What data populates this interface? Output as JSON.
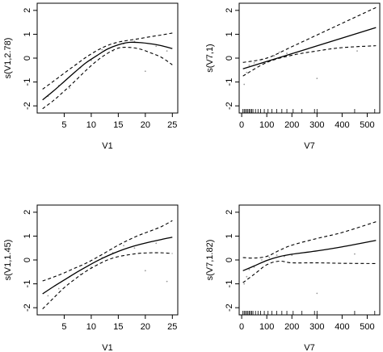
{
  "chart_data": [
    {
      "type": "line",
      "xlabel": "V1",
      "ylabel": "s(V1,2.78)",
      "xlim": [
        0,
        26
      ],
      "ylim": [
        -2.3,
        2.3
      ],
      "xticks": [
        5,
        10,
        15,
        20,
        25
      ],
      "yticks": [
        -2,
        -1,
        0,
        1,
        2
      ],
      "rug": false,
      "fit": {
        "x": [
          1,
          3,
          5,
          7,
          9,
          11,
          13,
          15,
          17,
          19,
          21,
          23,
          25
        ],
        "y": [
          -1.75,
          -1.38,
          -0.98,
          -0.58,
          -0.2,
          0.1,
          0.38,
          0.56,
          0.66,
          0.65,
          0.6,
          0.52,
          0.4
        ]
      },
      "upper": {
        "x": [
          1,
          3,
          5,
          7,
          9,
          11,
          13,
          15,
          17,
          19,
          21,
          23,
          25
        ],
        "y": [
          -1.3,
          -0.97,
          -0.63,
          -0.3,
          0.03,
          0.31,
          0.53,
          0.67,
          0.75,
          0.82,
          0.9,
          0.97,
          1.05
        ]
      },
      "lower": {
        "x": [
          1,
          3,
          5,
          7,
          9,
          11,
          13,
          15,
          17,
          19,
          21,
          23,
          25
        ],
        "y": [
          -2.12,
          -1.78,
          -1.38,
          -0.96,
          -0.52,
          -0.12,
          0.2,
          0.42,
          0.45,
          0.38,
          0.22,
          0.03,
          -0.28
        ]
      },
      "points": {
        "x": [
          2,
          4,
          6,
          8,
          10,
          12,
          14,
          16,
          18,
          20,
          22,
          24
        ],
        "y": [
          -1.6,
          -1.15,
          -1.25,
          -0.4,
          -0.1,
          0.35,
          0.3,
          0.6,
          0.7,
          -0.55,
          0.5,
          0.3
        ]
      }
    },
    {
      "type": "line",
      "xlabel": "V7",
      "ylabel": "s(V7,1)",
      "xlim": [
        -10,
        550
      ],
      "ylim": [
        -2.3,
        2.3
      ],
      "xticks": [
        0,
        100,
        200,
        300,
        400,
        500
      ],
      "yticks": [
        -2,
        -1,
        0,
        1,
        2
      ],
      "rug": true,
      "fit": {
        "x": [
          5,
          535
        ],
        "y": [
          -0.45,
          1.28
        ]
      },
      "upper": {
        "x": [
          5,
          100,
          200,
          300,
          400,
          535
        ],
        "y": [
          -0.18,
          0.0,
          0.48,
          0.97,
          1.46,
          2.12
        ]
      },
      "lower": {
        "x": [
          5,
          100,
          200,
          300,
          400,
          535
        ],
        "y": [
          -0.75,
          -0.18,
          0.12,
          0.3,
          0.44,
          0.52
        ]
      },
      "points": {
        "x": [
          10,
          20,
          30,
          50,
          80,
          100,
          130,
          150,
          180,
          300,
          460
        ],
        "y": [
          -1.1,
          -0.6,
          -0.3,
          -0.2,
          -0.05,
          0.0,
          0.1,
          0.25,
          0.2,
          -0.85,
          0.3
        ]
      },
      "rug_x": [
        5,
        10,
        15,
        20,
        25,
        30,
        35,
        40,
        45,
        55,
        65,
        75,
        90,
        105,
        120,
        140,
        160,
        180,
        205,
        240,
        290,
        300,
        450,
        530
      ]
    },
    {
      "type": "line",
      "xlabel": "V1",
      "ylabel": "s(V1,1.45)",
      "xlim": [
        0,
        26
      ],
      "ylim": [
        -2.3,
        2.3
      ],
      "xticks": [
        5,
        10,
        15,
        20,
        25
      ],
      "yticks": [
        -2,
        -1,
        0,
        1,
        2
      ],
      "rug": false,
      "fit": {
        "x": [
          1,
          3,
          5,
          7,
          9,
          11,
          13,
          15,
          17,
          19,
          21,
          23,
          25
        ],
        "y": [
          -1.42,
          -1.12,
          -0.84,
          -0.56,
          -0.3,
          -0.05,
          0.17,
          0.36,
          0.52,
          0.65,
          0.76,
          0.86,
          0.95
        ]
      },
      "upper": {
        "x": [
          1,
          3,
          5,
          7,
          9,
          11,
          13,
          15,
          17,
          19,
          21,
          23,
          25
        ],
        "y": [
          -0.88,
          -0.72,
          -0.54,
          -0.34,
          -0.14,
          0.1,
          0.36,
          0.62,
          0.85,
          1.05,
          1.22,
          1.4,
          1.65
        ]
      },
      "lower": {
        "x": [
          1,
          3,
          5,
          7,
          9,
          11,
          13,
          15,
          17,
          19,
          21,
          23,
          25
        ],
        "y": [
          -2.05,
          -1.6,
          -1.16,
          -0.8,
          -0.48,
          -0.22,
          0.0,
          0.14,
          0.22,
          0.28,
          0.3,
          0.3,
          0.27
        ]
      },
      "points": {
        "x": [
          2,
          4,
          6,
          8,
          10,
          12,
          14,
          16,
          18,
          20,
          22,
          24
        ],
        "y": [
          -1.5,
          -1.2,
          -0.7,
          -0.6,
          -0.3,
          0.1,
          0.3,
          0.6,
          0.5,
          -0.45,
          0.7,
          -0.9
        ]
      }
    },
    {
      "type": "line",
      "xlabel": "V7",
      "ylabel": "s(V7,1.82)",
      "xlim": [
        -10,
        550
      ],
      "ylim": [
        -2.3,
        2.3
      ],
      "xticks": [
        0,
        100,
        200,
        300,
        400,
        500
      ],
      "yticks": [
        -2,
        -1,
        0,
        1,
        2
      ],
      "rug": true,
      "fit": {
        "x": [
          5,
          50,
          100,
          150,
          200,
          300,
          400,
          535
        ],
        "y": [
          -0.45,
          -0.25,
          -0.02,
          0.14,
          0.24,
          0.38,
          0.55,
          0.82
        ]
      },
      "upper": {
        "x": [
          5,
          50,
          100,
          150,
          200,
          300,
          400,
          535
        ],
        "y": [
          0.1,
          0.08,
          0.15,
          0.4,
          0.62,
          0.9,
          1.15,
          1.6
        ]
      },
      "lower": {
        "x": [
          5,
          50,
          100,
          150,
          200,
          300,
          400,
          535
        ],
        "y": [
          -0.95,
          -0.6,
          -0.2,
          -0.05,
          -0.12,
          -0.12,
          -0.14,
          -0.15
        ]
      },
      "points": {
        "x": [
          10,
          20,
          30,
          50,
          80,
          110,
          140,
          170,
          200,
          300,
          450
        ],
        "y": [
          -1.0,
          -0.7,
          -0.4,
          -0.3,
          0.0,
          0.1,
          0.2,
          0.15,
          0.2,
          -1.4,
          0.25
        ]
      },
      "rug_x": [
        5,
        10,
        15,
        20,
        25,
        30,
        35,
        40,
        45,
        55,
        65,
        75,
        90,
        105,
        120,
        140,
        160,
        180,
        205,
        240,
        290,
        300,
        450,
        530
      ]
    }
  ]
}
